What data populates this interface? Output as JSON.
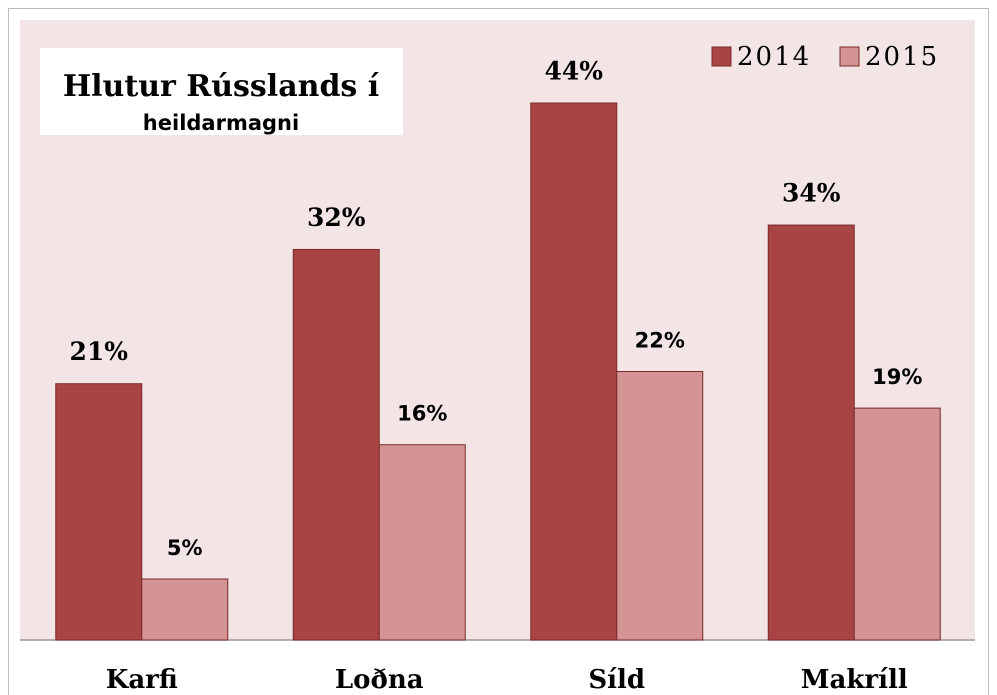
{
  "chart_data": {
    "type": "bar",
    "title": "Hlutur Rússlands í",
    "subtitle": "heildarmagni",
    "categories": [
      "Karfi",
      "Loðna",
      "Síld",
      "Makríll"
    ],
    "series": [
      {
        "name": "2014",
        "color": "#a84444",
        "values": [
          21,
          32,
          44,
          34
        ],
        "value_labels": [
          "21%",
          "32%",
          "44%",
          "34%"
        ]
      },
      {
        "name": "2015",
        "color": "#d49494",
        "values": [
          5,
          16,
          22,
          19
        ],
        "value_labels": [
          "5%",
          "16%",
          "22%",
          "19%"
        ]
      }
    ],
    "legend": "top-right"
  }
}
